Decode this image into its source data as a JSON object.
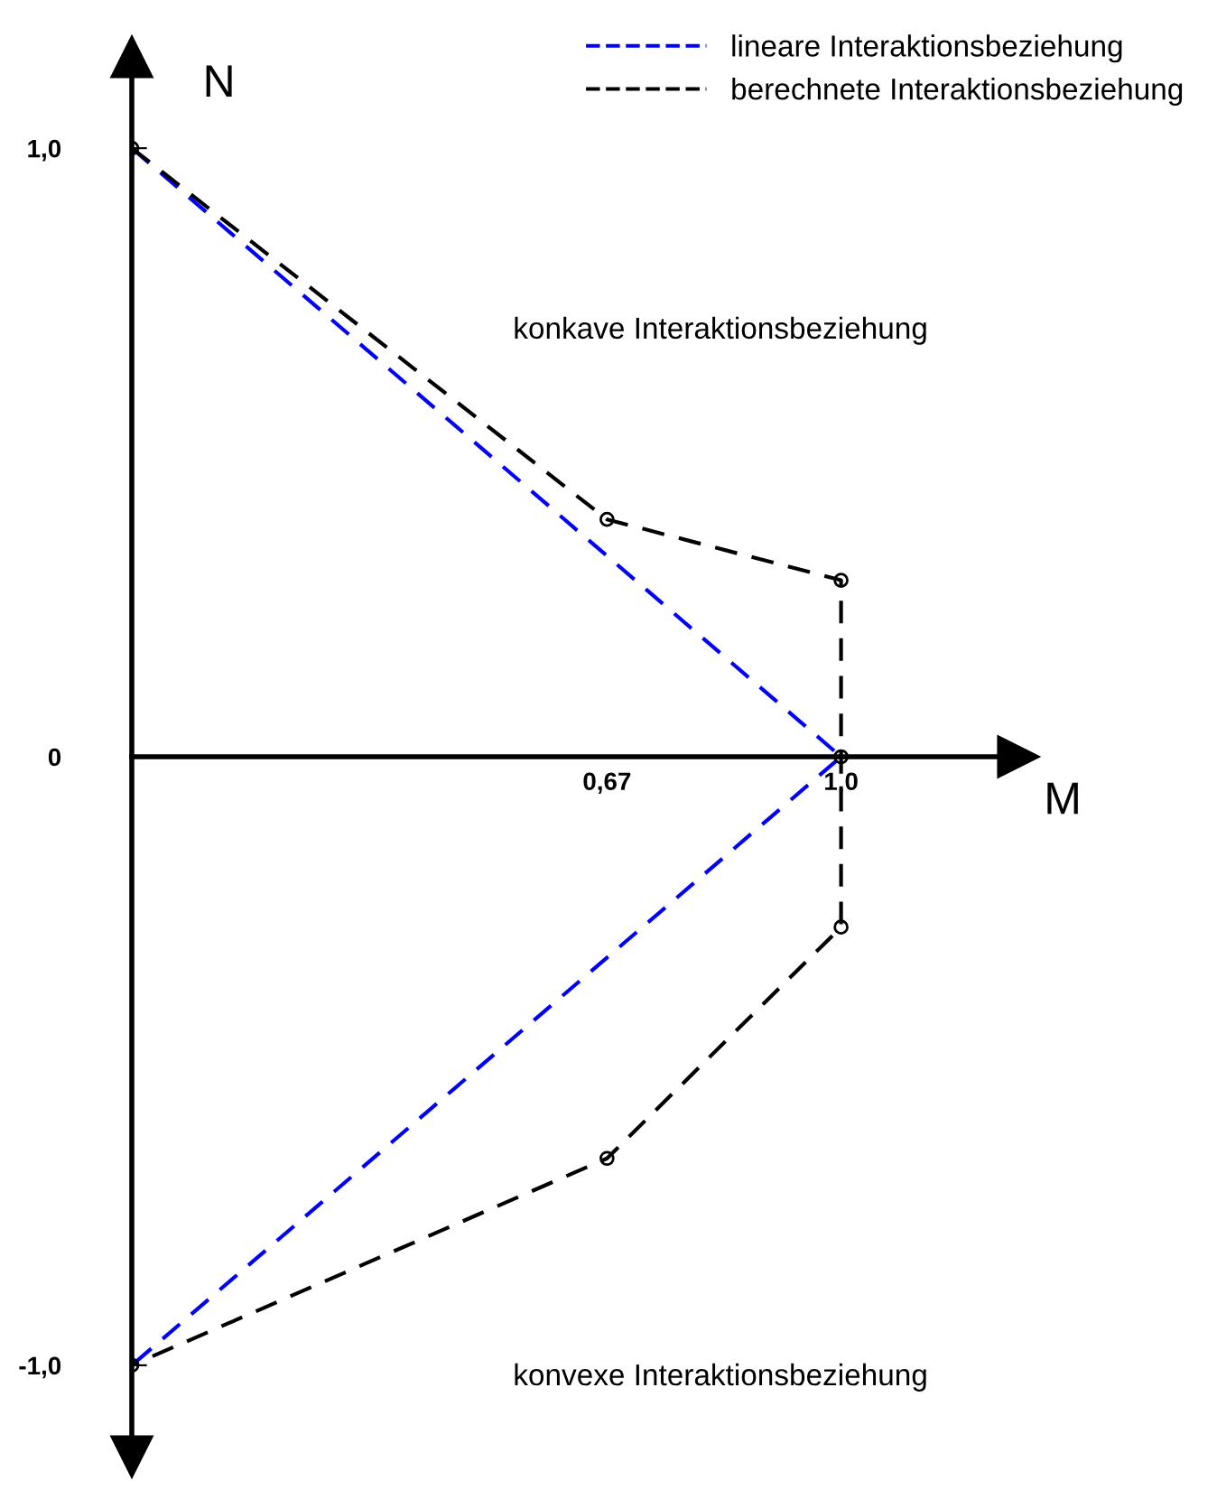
{
  "chart_data": {
    "type": "line",
    "xlabel": "M",
    "ylabel": "N",
    "xlim": [
      0,
      1.25
    ],
    "ylim": [
      -1.15,
      1.15
    ],
    "xticks": [
      {
        "value": 0.67,
        "label": "0,67"
      },
      {
        "value": 1.0,
        "label": "1,0"
      }
    ],
    "yticks": [
      {
        "value": -1.0,
        "label": "-1,0"
      },
      {
        "value": 0,
        "label": "0"
      },
      {
        "value": 1.0,
        "label": "1,0"
      }
    ],
    "series": [
      {
        "name": "lineare Interaktionsbeziehung",
        "color": "#0000ff",
        "x": [
          0,
          1.0,
          0
        ],
        "values": [
          1.0,
          0,
          -1.0
        ],
        "marker": "none",
        "line_style": "dashed"
      },
      {
        "name": "berechnete Interaktionsbeziehung",
        "color": "#000000",
        "x": [
          0,
          0.67,
          1.0,
          1.0,
          1.0,
          0.67,
          0
        ],
        "values": [
          1.0,
          0.39,
          0.29,
          0,
          -0.28,
          -0.66,
          -1.0
        ],
        "marker": "circle",
        "line_style": "dashed"
      }
    ],
    "annotations": [
      "konkave Interaktionsbeziehung",
      "konvexe Interaktionsbeziehung"
    ],
    "grid": false,
    "legend": "top right"
  }
}
